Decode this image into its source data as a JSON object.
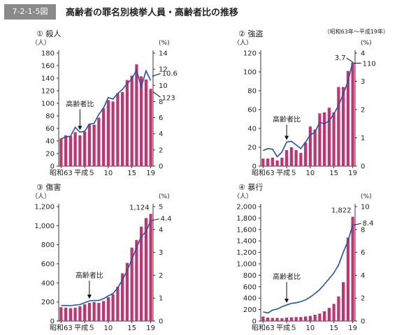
{
  "header": {
    "figure_number": "7-2-1-5図",
    "title": "高齢者の罪名別検挙人員・高齢者比の推移",
    "period": "（昭和63年～平成19年）"
  },
  "colors": {
    "bar": "#c2336f",
    "line": "#2352a8",
    "axis": "#333333",
    "header_tag": "#8a8a8a"
  },
  "chart_data": [
    {
      "type": "bar",
      "title": "① 殺人",
      "ylabel": "（人）",
      "y2label": "(%)",
      "categories": [
        "昭和63",
        "平成元",
        "2",
        "3",
        "4",
        "5",
        "6",
        "7",
        "8",
        "9",
        "10",
        "11",
        "12",
        "13",
        "14",
        "15",
        "16",
        "17",
        "18",
        "19"
      ],
      "tick_labels": {
        "0": "昭和63",
        "5": "平成５",
        "10": "10",
        "15": "15",
        "19": "19"
      },
      "series": [
        {
          "name": "",
          "axis": "left",
          "values": [
            44,
            49,
            48,
            54,
            49,
            55,
            67,
            66,
            77,
            92,
            105,
            103,
            116,
            118,
            137,
            144,
            162,
            143,
            138,
            123
          ]
        },
        {
          "name": "",
          "axis": "right",
          "values": [
            3.4,
            3.6,
            3.7,
            4.8,
            4.2,
            4.3,
            5.2,
            5.3,
            6.4,
            7.2,
            8.5,
            8.3,
            9.0,
            9.5,
            10.2,
            10.8,
            11.9,
            9.8,
            11.8,
            10.6
          ]
        }
      ],
      "ylim": [
        0,
        180
      ],
      "yticks": [
        0,
        20,
        40,
        60,
        80,
        100,
        120,
        140,
        160,
        180
      ],
      "y2lim": [
        0,
        14
      ],
      "y2ticks": [
        0,
        2,
        4,
        6,
        8,
        10,
        12,
        14
      ],
      "annotations": {
        "ratio_label": "高齢者比",
        "last_count": "123",
        "last_ratio": "10.6"
      }
    },
    {
      "type": "bar",
      "title": "② 強盗",
      "ylabel": "（人）",
      "y2label": "(%)",
      "categories": [
        "昭和63",
        "平成元",
        "2",
        "3",
        "4",
        "5",
        "6",
        "7",
        "8",
        "9",
        "10",
        "11",
        "12",
        "13",
        "14",
        "15",
        "16",
        "17",
        "18",
        "19"
      ],
      "tick_labels": {
        "0": "昭和63",
        "5": "平成５",
        "10": "10",
        "15": "15",
        "19": "19"
      },
      "series": [
        {
          "name": "",
          "axis": "left",
          "values": [
            8,
            8,
            9,
            6,
            9,
            17,
            20,
            17,
            14,
            25,
            42,
            39,
            56,
            57,
            62,
            57,
            84,
            84,
            101,
            110
          ]
        },
        {
          "name": "",
          "axis": "right",
          "values": [
            0.55,
            0.62,
            0.6,
            0.33,
            0.5,
            0.85,
            0.88,
            0.75,
            0.62,
            0.85,
            1.1,
            1.2,
            1.55,
            1.5,
            1.6,
            1.85,
            2.15,
            2.55,
            3.0,
            3.7
          ]
        }
      ],
      "ylim": [
        0,
        120
      ],
      "yticks": [
        0,
        20,
        40,
        60,
        80,
        100,
        120
      ],
      "y2lim": [
        0,
        4
      ],
      "y2ticks": [
        0,
        1,
        2,
        3,
        4
      ],
      "annotations": {
        "ratio_label": "高齢者比",
        "last_count": "110",
        "last_ratio": "3.7"
      }
    },
    {
      "type": "bar",
      "title": "③ 傷害",
      "ylabel": "（人）",
      "y2label": "(%)",
      "categories": [
        "昭和63",
        "平成元",
        "2",
        "3",
        "4",
        "5",
        "6",
        "7",
        "8",
        "9",
        "10",
        "11",
        "12",
        "13",
        "14",
        "15",
        "16",
        "17",
        "18",
        "19"
      ],
      "tick_labels": {
        "0": "昭和63",
        "5": "平成５",
        "10": "10",
        "15": "15",
        "19": "19"
      },
      "series": [
        {
          "name": "",
          "axis": "left",
          "values": [
            145,
            140,
            135,
            140,
            155,
            175,
            190,
            200,
            190,
            210,
            250,
            280,
            360,
            500,
            610,
            770,
            850,
            990,
            1080,
            1124
          ]
        },
        {
          "name": "",
          "axis": "right",
          "values": [
            0.68,
            0.68,
            0.67,
            0.7,
            0.72,
            0.8,
            0.88,
            0.9,
            0.9,
            0.98,
            1.1,
            1.2,
            1.45,
            1.8,
            2.2,
            2.7,
            3.2,
            3.7,
            3.9,
            4.4
          ]
        }
      ],
      "ylim": [
        0,
        1200
      ],
      "yticks": [
        0,
        200,
        400,
        600,
        800,
        1000,
        1200
      ],
      "y2lim": [
        0,
        5
      ],
      "y2ticks": [
        0,
        1,
        2,
        3,
        4,
        5
      ],
      "annotations": {
        "ratio_label": "高齢者比",
        "last_count": "1,124",
        "last_ratio": "4.4"
      }
    },
    {
      "type": "bar",
      "title": "④ 暴行",
      "ylabel": "（人）",
      "y2label": "(%)",
      "categories": [
        "昭和63",
        "平成元",
        "2",
        "3",
        "4",
        "5",
        "6",
        "7",
        "8",
        "9",
        "10",
        "11",
        "12",
        "13",
        "14",
        "15",
        "16",
        "17",
        "18",
        "19"
      ],
      "tick_labels": {
        "0": "昭和63",
        "5": "平成５",
        "10": "10",
        "15": "15",
        "19": "19"
      },
      "series": [
        {
          "name": "",
          "axis": "left",
          "values": [
            80,
            60,
            55,
            55,
            50,
            60,
            65,
            70,
            70,
            80,
            90,
            110,
            130,
            170,
            230,
            300,
            430,
            680,
            1460,
            1822
          ]
        },
        {
          "name": "",
          "axis": "right",
          "values": [
            0.8,
            0.7,
            0.95,
            1.05,
            1.25,
            1.4,
            1.55,
            1.6,
            1.7,
            1.85,
            2.1,
            2.4,
            2.75,
            3.2,
            3.7,
            4.2,
            4.9,
            6.0,
            7.0,
            8.4
          ]
        }
      ],
      "ylim": [
        0,
        2000
      ],
      "yticks": [
        0,
        200,
        400,
        600,
        800,
        1000,
        1200,
        1400,
        1600,
        1800,
        2000
      ],
      "y2lim": [
        0,
        10
      ],
      "y2ticks": [
        0,
        2,
        4,
        6,
        8,
        10
      ],
      "annotations": {
        "ratio_label": "高齢者比",
        "last_count": "1,822",
        "last_ratio": "8.4"
      }
    }
  ]
}
